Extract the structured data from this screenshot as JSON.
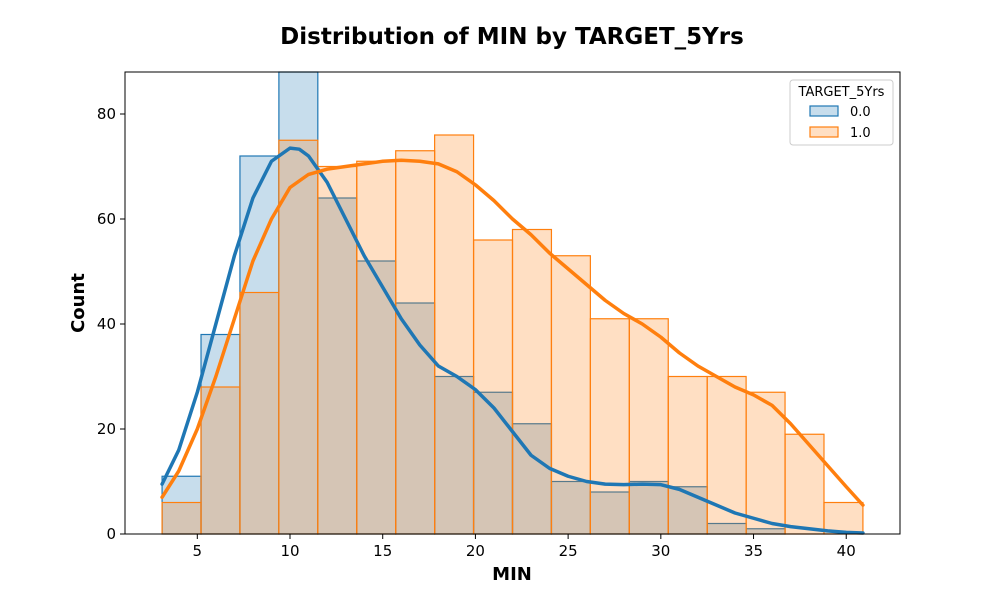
{
  "chart_data": {
    "type": "histogram",
    "title": "Distribution of MIN by TARGET_5Yrs",
    "xlabel": "MIN",
    "ylabel": "Count",
    "xlim": [
      1.1,
      42.9
    ],
    "ylim": [
      0,
      88
    ],
    "xticks": [
      5,
      10,
      15,
      20,
      25,
      30,
      35,
      40
    ],
    "yticks": [
      0,
      20,
      40,
      60,
      80
    ],
    "bin_edges": [
      3.1,
      5.2,
      7.3,
      9.4,
      11.5,
      13.6,
      15.7,
      17.8,
      19.9,
      22.0,
      24.1,
      26.2,
      28.3,
      30.4,
      32.5,
      34.6,
      36.7,
      38.8,
      40.9
    ],
    "grid": false,
    "legend": {
      "title": "TARGET_5Yrs",
      "position": "top-right"
    },
    "series": [
      {
        "name": "0.0",
        "color": "#1f77b4",
        "counts": [
          11,
          38,
          72,
          88,
          64,
          52,
          44,
          30,
          27,
          21,
          10,
          8,
          10,
          9,
          2,
          1,
          0,
          0
        ],
        "kde": {
          "x": [
            3.1,
            4,
            5,
            6,
            7,
            8,
            9,
            10,
            10.5,
            11,
            12,
            13,
            14,
            15,
            16,
            17,
            18,
            19,
            20,
            21,
            22,
            23,
            24,
            25,
            26,
            27,
            28,
            29,
            30,
            31,
            32,
            33,
            34,
            35,
            36,
            37,
            38,
            39,
            40,
            40.9
          ],
          "y": [
            9.5,
            16,
            27,
            40,
            53,
            64,
            71,
            73.5,
            73.3,
            72,
            67,
            60,
            53,
            47,
            41,
            36,
            32,
            30,
            27.5,
            24,
            19.5,
            15,
            12.5,
            11,
            10,
            9.5,
            9.4,
            9.5,
            9.4,
            8.5,
            7,
            5.5,
            4,
            3,
            2,
            1.4,
            1,
            0.6,
            0.3,
            0.2
          ]
        }
      },
      {
        "name": "1.0",
        "color": "#ff7f0e",
        "counts": [
          6,
          28,
          46,
          75,
          70,
          71,
          73,
          76,
          56,
          58,
          53,
          41,
          41,
          30,
          30,
          27,
          19,
          6
        ],
        "kde": {
          "x": [
            3.1,
            4,
            5,
            6,
            7,
            8,
            9,
            10,
            11,
            12,
            13,
            14,
            15,
            16,
            17,
            18,
            19,
            20,
            21,
            22,
            23,
            24,
            25,
            26,
            27,
            28,
            29,
            30,
            31,
            32,
            33,
            34,
            35,
            36,
            37,
            38,
            39,
            40,
            40.9
          ],
          "y": [
            7,
            12,
            20,
            30,
            41,
            52,
            60,
            66,
            68.5,
            69.5,
            70,
            70.5,
            71,
            71.2,
            71,
            70.5,
            69,
            66.5,
            63.5,
            60,
            57,
            53.5,
            50.5,
            47.5,
            44.5,
            42,
            40,
            37.5,
            34.5,
            32,
            30,
            28,
            26.5,
            24.5,
            21,
            17,
            13,
            9,
            5.5
          ]
        }
      }
    ]
  }
}
